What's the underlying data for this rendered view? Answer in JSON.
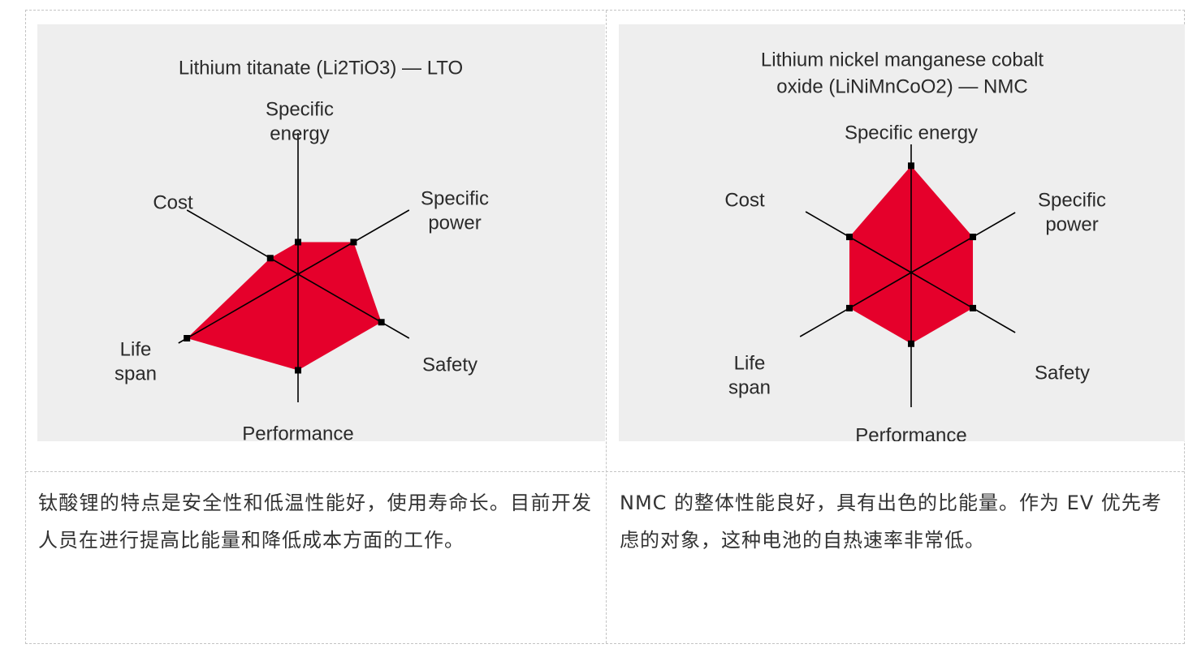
{
  "colors": {
    "fill": "#e5002b",
    "panel_bg": "#eeeeee",
    "axis": "#000000",
    "caption_text": "#333333"
  },
  "chart_data": [
    {
      "type": "radar",
      "title": "Lithium titanate (Li2TiO3) — LTO",
      "axes": [
        "Specific energy",
        "Specific power",
        "Safety",
        "Performance",
        "Life span",
        "Cost"
      ],
      "axis_label_lines": [
        [
          "Specific",
          "energy"
        ],
        [
          "Specific",
          "power"
        ],
        [
          "Safety"
        ],
        [
          "Performance"
        ],
        [
          "Life",
          "span"
        ],
        [
          "Cost"
        ]
      ],
      "values": [
        1,
        2,
        3,
        3,
        4,
        1
      ],
      "max": 4,
      "grid": false,
      "legend": "none"
    },
    {
      "type": "radar",
      "title": "Lithium nickel manganese cobalt\noxide (LiNiMnCoO2) — NMC",
      "title_lines": [
        "Lithium nickel manganese cobalt",
        "oxide (LiNiMnCoO2) — NMC"
      ],
      "axes": [
        "Specific energy",
        "Specific power",
        "Safety",
        "Performance",
        "Life span",
        "Cost"
      ],
      "axis_label_lines": [
        [
          "Specific energy"
        ],
        [
          "Specific",
          "power"
        ],
        [
          "Safety"
        ],
        [
          "Performance"
        ],
        [
          "Life",
          "span"
        ],
        [
          "Cost"
        ]
      ],
      "values": [
        3,
        2,
        2,
        2,
        2,
        2
      ],
      "max": 3.6,
      "grid": false,
      "legend": "none"
    }
  ],
  "captions": {
    "lto": "钛酸锂的特点是安全性和低温性能好，使用寿命长。目前开发人员在进行提高比能量和降低成本方面的工作。",
    "nmc": "NMC 的整体性能良好，具有出色的比能量。作为 EV 优先考虑的对象，这种电池的自热速率非常低。"
  }
}
